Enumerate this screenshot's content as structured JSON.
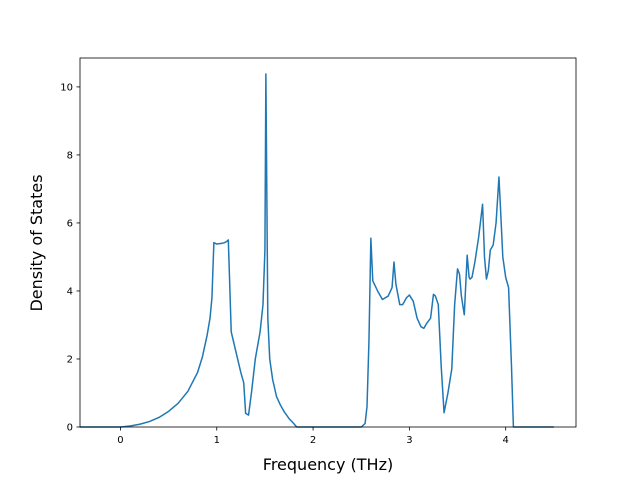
{
  "chart_data": {
    "type": "line",
    "title": "",
    "xlabel": "Frequency (THz)",
    "ylabel": "Density of States",
    "xlim": [
      -0.42,
      4.73
    ],
    "ylim": [
      0,
      10.85
    ],
    "xticks": [
      0,
      1,
      2,
      3,
      4
    ],
    "yticks": [
      0,
      2,
      4,
      6,
      8,
      10
    ],
    "grid": false,
    "legend": "none",
    "series": [
      {
        "color": "#1f77b4",
        "x": [
          -0.42,
          0.0,
          0.1,
          0.2,
          0.3,
          0.4,
          0.5,
          0.6,
          0.7,
          0.8,
          0.85,
          0.9,
          0.93,
          0.95,
          0.97,
          1.0,
          1.05,
          1.08,
          1.1,
          1.12,
          1.15,
          1.2,
          1.25,
          1.28,
          1.3,
          1.33,
          1.36,
          1.4,
          1.45,
          1.48,
          1.5,
          1.51,
          1.53,
          1.55,
          1.58,
          1.62,
          1.66,
          1.7,
          1.75,
          1.8,
          1.83,
          2.0,
          2.3,
          2.5,
          2.54,
          2.56,
          2.58,
          2.6,
          2.62,
          2.67,
          2.72,
          2.78,
          2.82,
          2.84,
          2.86,
          2.9,
          2.93,
          2.97,
          3.0,
          3.04,
          3.08,
          3.12,
          3.15,
          3.18,
          3.22,
          3.25,
          3.27,
          3.3,
          3.33,
          3.36,
          3.4,
          3.44,
          3.47,
          3.5,
          3.52,
          3.54,
          3.57,
          3.6,
          3.62,
          3.63,
          3.65,
          3.68,
          3.72,
          3.76,
          3.78,
          3.8,
          3.82,
          3.84,
          3.87,
          3.9,
          3.93,
          3.95,
          3.97,
          4.0,
          4.03,
          4.06,
          4.08,
          4.1,
          4.12,
          4.3,
          4.5
        ],
        "y": [
          0,
          0,
          0.03,
          0.08,
          0.16,
          0.28,
          0.46,
          0.7,
          1.05,
          1.6,
          2.05,
          2.7,
          3.2,
          3.8,
          5.42,
          5.38,
          5.4,
          5.42,
          5.45,
          5.5,
          2.8,
          2.2,
          1.6,
          1.3,
          0.4,
          0.35,
          1.0,
          2.0,
          2.8,
          3.6,
          5.2,
          10.38,
          3.2,
          2.0,
          1.4,
          0.9,
          0.65,
          0.45,
          0.25,
          0.1,
          0,
          0,
          0,
          0,
          0.1,
          0.6,
          2.5,
          5.55,
          4.3,
          4.0,
          3.75,
          3.85,
          4.1,
          4.85,
          4.2,
          3.6,
          3.6,
          3.8,
          3.88,
          3.7,
          3.2,
          2.95,
          2.9,
          3.05,
          3.2,
          3.9,
          3.85,
          3.6,
          1.8,
          0.42,
          1.0,
          1.7,
          3.6,
          4.65,
          4.5,
          3.85,
          3.3,
          5.05,
          4.4,
          4.35,
          4.4,
          4.85,
          5.6,
          6.55,
          5.0,
          4.35,
          4.6,
          5.2,
          5.35,
          6.0,
          7.35,
          6.2,
          5.0,
          4.4,
          4.1,
          1.8,
          0,
          0,
          0,
          0,
          0
        ]
      }
    ]
  }
}
